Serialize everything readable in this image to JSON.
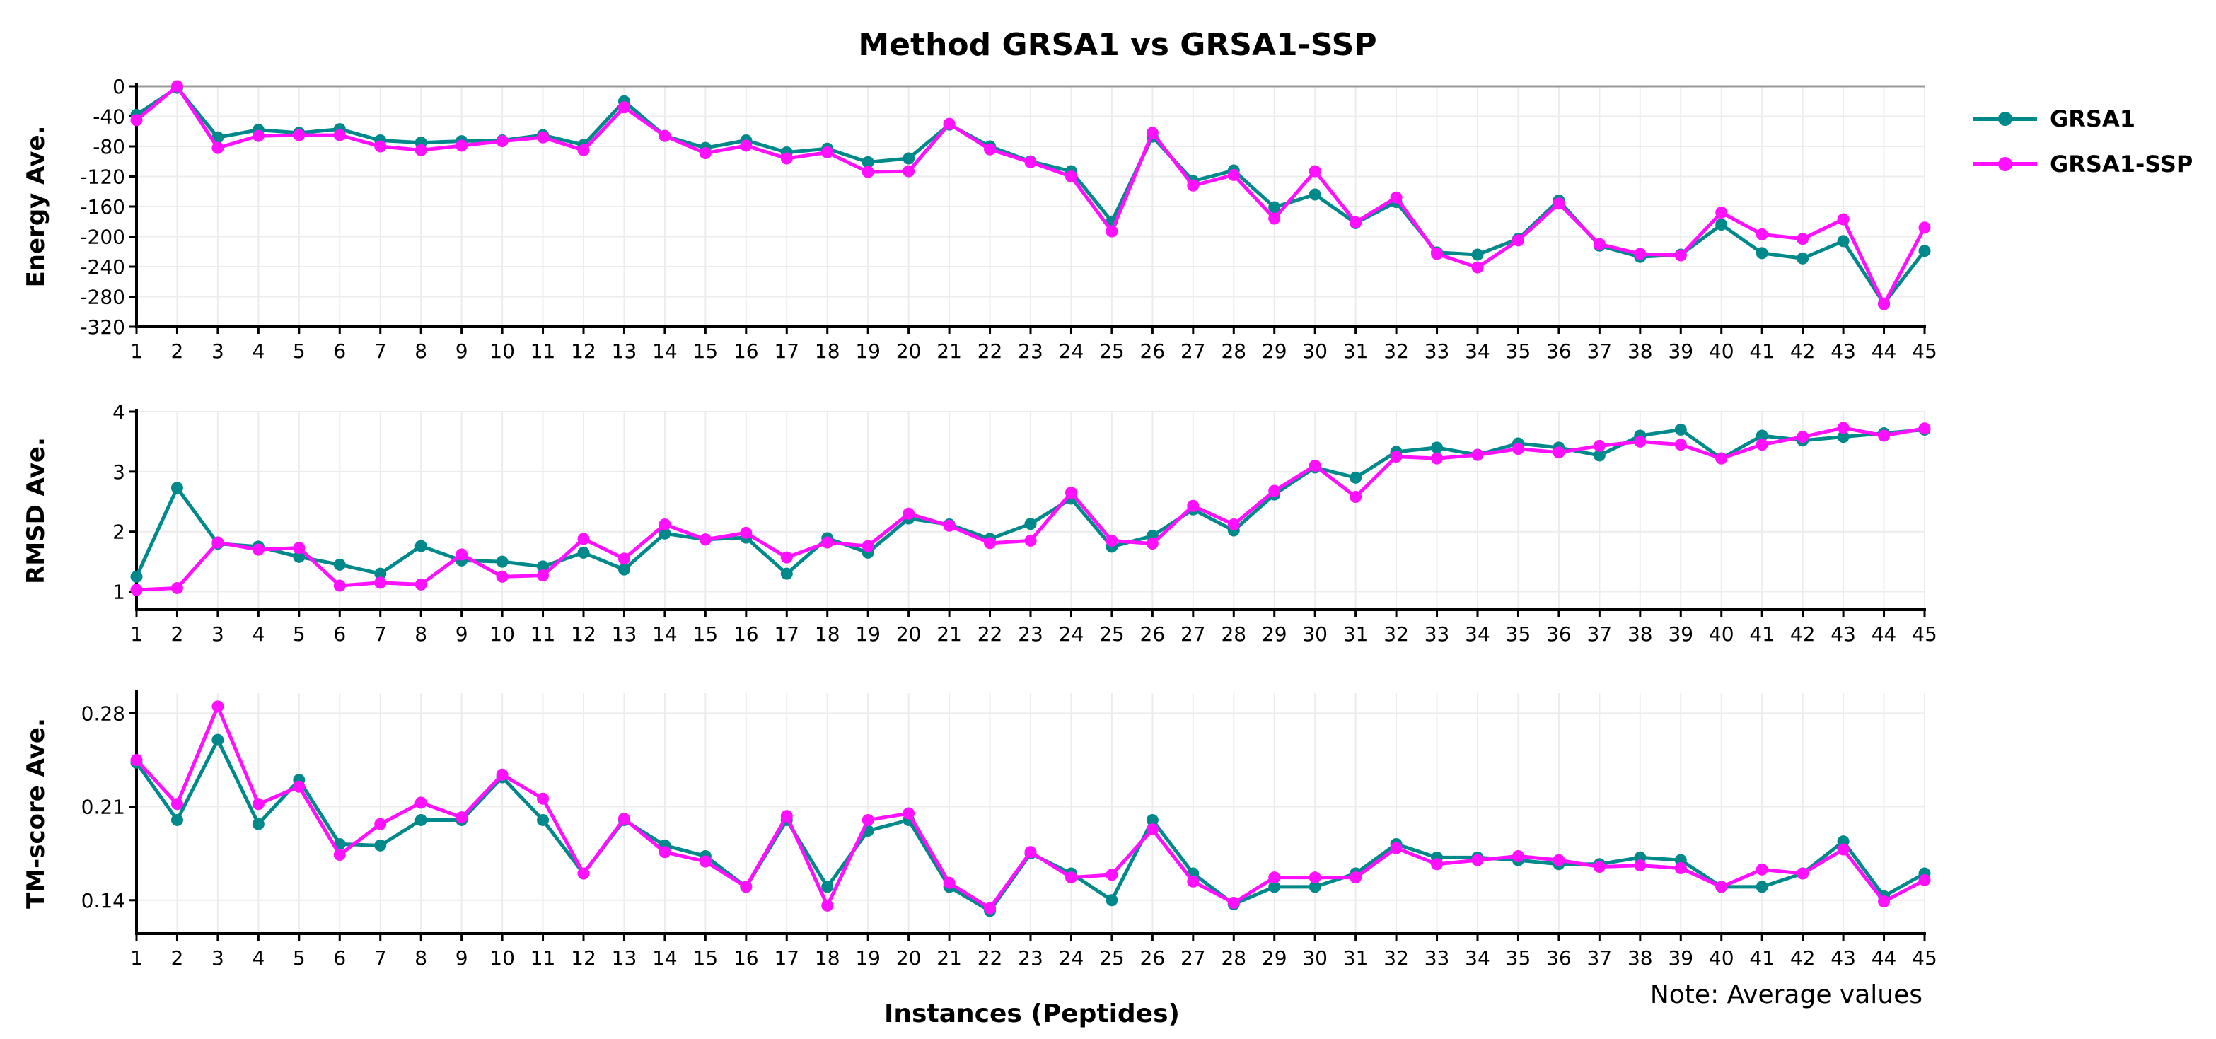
{
  "chart_data": {
    "type": "line",
    "title": "Method GRSA1 vs GRSA1-SSP",
    "xlabel": "Instances (Peptides)",
    "note": "Note: Average values",
    "x": [
      1,
      2,
      3,
      4,
      5,
      6,
      7,
      8,
      9,
      10,
      11,
      12,
      13,
      14,
      15,
      16,
      17,
      18,
      19,
      20,
      21,
      22,
      23,
      24,
      25,
      26,
      27,
      28,
      29,
      30,
      31,
      32,
      33,
      34,
      35,
      36,
      37,
      38,
      39,
      40,
      41,
      42,
      43,
      44,
      45
    ],
    "legend": {
      "position": "top-right",
      "entries": [
        {
          "name": "GRSA1",
          "color": "#00898a"
        },
        {
          "name": "GRSA1-SSP",
          "color": "#ff10ff"
        }
      ]
    },
    "panels": [
      {
        "ylabel": "Energy Ave.",
        "ylim": [
          -320,
          0
        ],
        "yticks": [
          0,
          -40,
          -80,
          -120,
          -160,
          -200,
          -240,
          -280,
          -320
        ],
        "reference_line": 0,
        "series": [
          {
            "name": "GRSA1",
            "values": [
              -38,
              -2,
              -68,
              -58,
              -62,
              -57,
              -72,
              -75,
              -73,
              -72,
              -65,
              -78,
              -20,
              -66,
              -82,
              -72,
              -88,
              -83,
              -101,
              -96,
              -51,
              -80,
              -100,
              -113,
              -180,
              -67,
              -126,
              -112,
              -161,
              -144,
              -182,
              -154,
              -221,
              -224,
              -203,
              -152,
              -212,
              -227,
              -224,
              -184,
              -222,
              -229,
              -206,
              -289,
              -219
            ]
          },
          {
            "name": "GRSA1-SSP",
            "values": [
              -45,
              0,
              -82,
              -66,
              -65,
              -65,
              -80,
              -85,
              -79,
              -73,
              -68,
              -85,
              -28,
              -66,
              -89,
              -79,
              -96,
              -88,
              -114,
              -113,
              -50,
              -84,
              -101,
              -120,
              -193,
              -62,
              -132,
              -118,
              -176,
              -113,
              -181,
              -148,
              -223,
              -241,
              -205,
              -156,
              -210,
              -223,
              -225,
              -168,
              -197,
              -203,
              -177,
              -290,
              -188
            ]
          }
        ]
      },
      {
        "ylabel": "RMSD Ave.",
        "ylim": [
          0.7,
          4.0
        ],
        "yticks": [
          1,
          2,
          3,
          4
        ],
        "series": [
          {
            "name": "GRSA1",
            "values": [
              1.25,
              2.73,
              1.8,
              1.75,
              1.58,
              1.45,
              1.3,
              1.76,
              1.52,
              1.5,
              1.42,
              1.65,
              1.37,
              1.97,
              1.87,
              1.9,
              1.3,
              1.89,
              1.65,
              2.22,
              2.12,
              1.88,
              2.13,
              2.55,
              1.75,
              1.93,
              2.37,
              2.02,
              2.62,
              3.07,
              2.9,
              3.33,
              3.4,
              3.28,
              3.47,
              3.4,
              3.27,
              3.6,
              3.7,
              3.22,
              3.6,
              3.52,
              3.58,
              3.64,
              3.7
            ]
          },
          {
            "name": "GRSA1-SSP",
            "values": [
              1.03,
              1.06,
              1.82,
              1.7,
              1.73,
              1.1,
              1.15,
              1.12,
              1.62,
              1.25,
              1.27,
              1.88,
              1.55,
              2.12,
              1.87,
              1.98,
              1.57,
              1.82,
              1.76,
              2.3,
              2.1,
              1.81,
              1.85,
              2.65,
              1.85,
              1.8,
              2.43,
              2.12,
              2.68,
              3.1,
              2.58,
              3.25,
              3.22,
              3.28,
              3.38,
              3.32,
              3.43,
              3.5,
              3.45,
              3.22,
              3.45,
              3.58,
              3.73,
              3.6,
              3.72
            ]
          }
        ]
      },
      {
        "ylabel": "TM-score Ave.",
        "ylim": [
          0.115,
          0.295
        ],
        "yticks": [
          0.14,
          0.21,
          0.28
        ],
        "ytick_labels": [
          "0.14",
          "0.21",
          "0.28"
        ],
        "series": [
          {
            "name": "GRSA1",
            "values": [
              0.243,
              0.2,
              0.26,
              0.197,
              0.23,
              0.182,
              0.181,
              0.2,
              0.2,
              0.232,
              0.2,
              0.16,
              0.2,
              0.181,
              0.173,
              0.15,
              0.2,
              0.15,
              0.192,
              0.2,
              0.15,
              0.132,
              0.175,
              0.16,
              0.14,
              0.2,
              0.16,
              0.137,
              0.15,
              0.15,
              0.16,
              0.182,
              0.172,
              0.172,
              0.17,
              0.167,
              0.167,
              0.172,
              0.17,
              0.15,
              0.15,
              0.16,
              0.184,
              0.143,
              0.16
            ]
          },
          {
            "name": "GRSA1-SSP",
            "values": [
              0.245,
              0.212,
              0.285,
              0.212,
              0.225,
              0.174,
              0.197,
              0.213,
              0.202,
              0.234,
              0.216,
              0.16,
              0.201,
              0.176,
              0.169,
              0.15,
              0.203,
              0.136,
              0.2,
              0.205,
              0.153,
              0.134,
              0.176,
              0.157,
              0.159,
              0.193,
              0.154,
              0.138,
              0.157,
              0.157,
              0.157,
              0.179,
              0.167,
              0.17,
              0.173,
              0.17,
              0.165,
              0.166,
              0.164,
              0.15,
              0.163,
              0.16,
              0.178,
              0.139,
              0.155
            ]
          }
        ]
      }
    ]
  }
}
